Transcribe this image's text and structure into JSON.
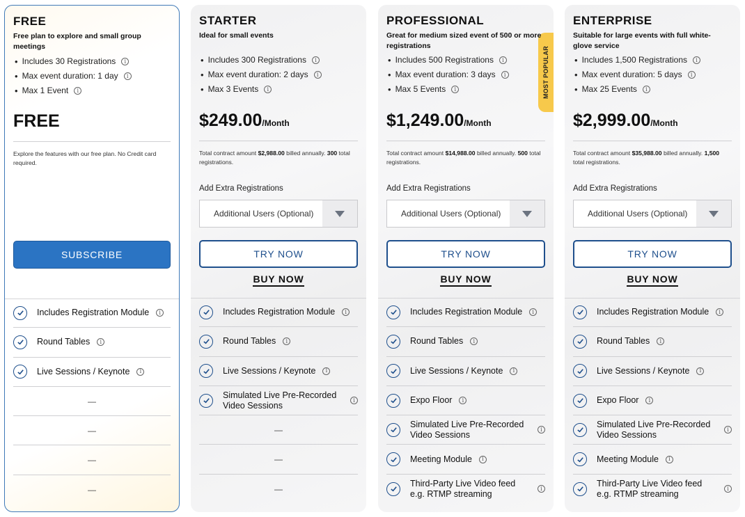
{
  "info_glyph": "i",
  "colors": {
    "accent": "#1e4f8c",
    "subscribe": "#2b74c3",
    "ribbon": "#f7c94b",
    "card_bg": "#f3f3f4"
  },
  "plans": {
    "free": {
      "title": "FREE",
      "subtitle": "Free plan to explore and small group meetings",
      "bullets": [
        "Includes 30 Registrations",
        "Max event duration: 1 day",
        "Max 1 Event"
      ],
      "price": "FREE",
      "note": "Explore the features with our free plan. No Credit card required.",
      "subscribe_label": "SUBSCRIBE",
      "features": [
        "Includes Registration Module",
        "Round Tables",
        "Live Sessions / Keynote"
      ],
      "empty": "—"
    },
    "starter": {
      "title": "STARTER",
      "subtitle": "Ideal for small events",
      "bullets": [
        "Includes 300 Registrations",
        "Max event duration: 2 days",
        "Max 3 Events"
      ],
      "price": "$249.00",
      "price_unit": "/Month",
      "note_a": "Total contract amount ",
      "note_amount": "$2,988.00",
      "note_b": " billed annually. ",
      "note_regs": "300",
      "note_c": " total registrations.",
      "extra_label": "Add Extra Registrations",
      "select_value": "Additional Users (Optional)",
      "try_label": "TRY NOW",
      "buy_label": "BUY NOW",
      "features": [
        "Includes Registration Module",
        "Round Tables",
        "Live Sessions / Keynote",
        "Simulated Live Pre-Recorded Video Sessions"
      ],
      "empty": "—"
    },
    "professional": {
      "title": "PROFESSIONAL",
      "subtitle": "Great for medium sized event of 500 or more registrations",
      "ribbon": "MOST POPULAR",
      "bullets": [
        "Includes 500 Registrations",
        "Max event duration: 3 days",
        "Max 5 Events"
      ],
      "price": "$1,249.00",
      "price_unit": "/Month",
      "note_a": "Total contract amount ",
      "note_amount": "$14,988.00",
      "note_b": " billed annually. ",
      "note_regs": "500",
      "note_c": " total registrations.",
      "extra_label": "Add Extra Registrations",
      "select_value": "Additional Users (Optional)",
      "try_label": "TRY NOW",
      "buy_label": "BUY NOW",
      "features": [
        "Includes Registration Module",
        "Round Tables",
        "Live Sessions / Keynote",
        "Expo Floor",
        "Simulated Live Pre-Recorded Video Sessions",
        "Meeting Module",
        "Third-Party Live Video feed e.g. RTMP streaming"
      ]
    },
    "enterprise": {
      "title": "ENTERPRISE",
      "subtitle": "Suitable for large events with full white-glove service",
      "bullets": [
        "Includes 1,500 Registrations",
        "Max event duration: 5 days",
        "Max 25 Events"
      ],
      "price": "$2,999.00",
      "price_unit": "/Month",
      "note_a": "Total contract amount ",
      "note_amount": "$35,988.00",
      "note_b": " billed annually. ",
      "note_regs": "1,500",
      "note_c": " total registrations.",
      "extra_label": "Add Extra Registrations",
      "select_value": "Additional Users (Optional)",
      "try_label": "TRY NOW",
      "buy_label": "BUY NOW",
      "features": [
        "Includes Registration Module",
        "Round Tables",
        "Live Sessions / Keynote",
        "Expo Floor",
        "Simulated Live Pre-Recorded Video Sessions",
        "Meeting Module",
        "Third-Party Live Video feed e.g. RTMP streaming"
      ]
    }
  }
}
